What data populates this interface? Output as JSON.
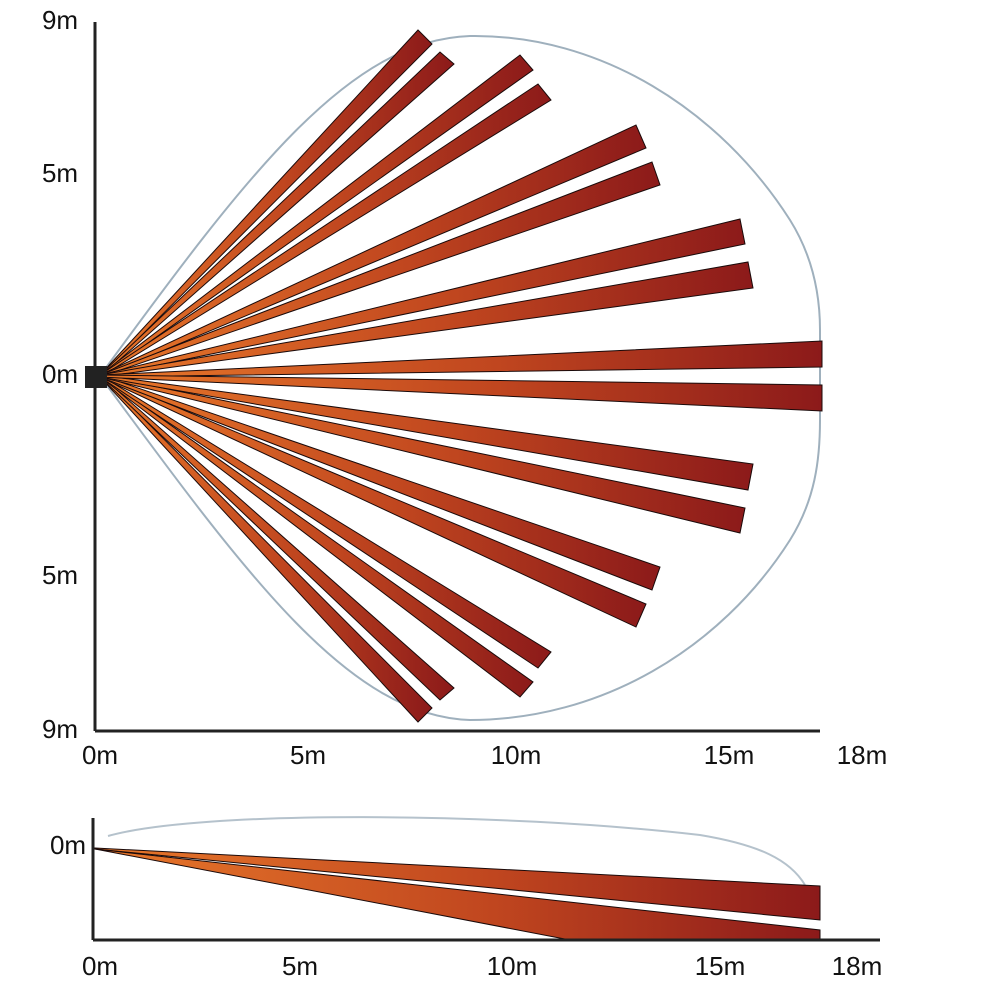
{
  "top_view": {
    "y_labels": [
      "9m",
      "5m",
      "0m",
      "5m",
      "9m"
    ],
    "x_labels": [
      "0m",
      "5m",
      "10m",
      "15m",
      "18m"
    ]
  },
  "side_view": {
    "y_labels": [
      "0m"
    ],
    "x_labels": [
      "0m",
      "5m",
      "10m",
      "15m",
      "18m"
    ]
  }
}
